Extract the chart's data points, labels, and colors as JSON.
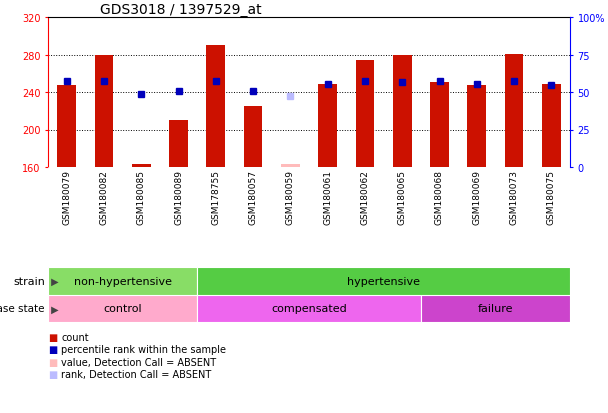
{
  "title": "GDS3018 / 1397529_at",
  "samples": [
    "GSM180079",
    "GSM180082",
    "GSM180085",
    "GSM180089",
    "GSM178755",
    "GSM180057",
    "GSM180059",
    "GSM180061",
    "GSM180062",
    "GSM180065",
    "GSM180068",
    "GSM180069",
    "GSM180073",
    "GSM180075"
  ],
  "count_values": [
    248,
    280,
    163,
    210,
    290,
    225,
    163,
    249,
    274,
    280,
    251,
    248,
    281,
    249
  ],
  "percentile_values": [
    252,
    252,
    238,
    241,
    252,
    241,
    236,
    249,
    252,
    251,
    252,
    249,
    252,
    248
  ],
  "absent_flags": [
    false,
    false,
    false,
    false,
    false,
    false,
    true,
    false,
    false,
    false,
    false,
    false,
    false,
    false
  ],
  "y_min": 160,
  "y_max": 320,
  "y_ticks_left": [
    160,
    200,
    240,
    280,
    320
  ],
  "right_tick_positions": [
    160,
    200,
    240,
    280,
    320
  ],
  "right_tick_labels": [
    "0",
    "25",
    "50",
    "75",
    "100%"
  ],
  "strain_groups": [
    {
      "label": "non-hypertensive",
      "start": 0,
      "end": 4,
      "color": "#88DD66"
    },
    {
      "label": "hypertensive",
      "start": 4,
      "end": 14,
      "color": "#55CC44"
    }
  ],
  "disease_groups": [
    {
      "label": "control",
      "start": 0,
      "end": 4,
      "color": "#FFAACC"
    },
    {
      "label": "compensated",
      "start": 4,
      "end": 10,
      "color": "#EE66EE"
    },
    {
      "label": "failure",
      "start": 10,
      "end": 14,
      "color": "#CC44CC"
    }
  ],
  "bar_color": "#CC1100",
  "dot_color": "#0000BB",
  "absent_bar_color": "#FFBBBB",
  "absent_dot_color": "#BBBBFF",
  "bar_width": 0.5,
  "tick_label_color": "#BBBBBB",
  "legend_items": [
    {
      "color": "#CC1100",
      "label": "count"
    },
    {
      "color": "#0000BB",
      "label": "percentile rank within the sample"
    },
    {
      "color": "#FFBBBB",
      "label": "value, Detection Call = ABSENT"
    },
    {
      "color": "#BBBBFF",
      "label": "rank, Detection Call = ABSENT"
    }
  ]
}
